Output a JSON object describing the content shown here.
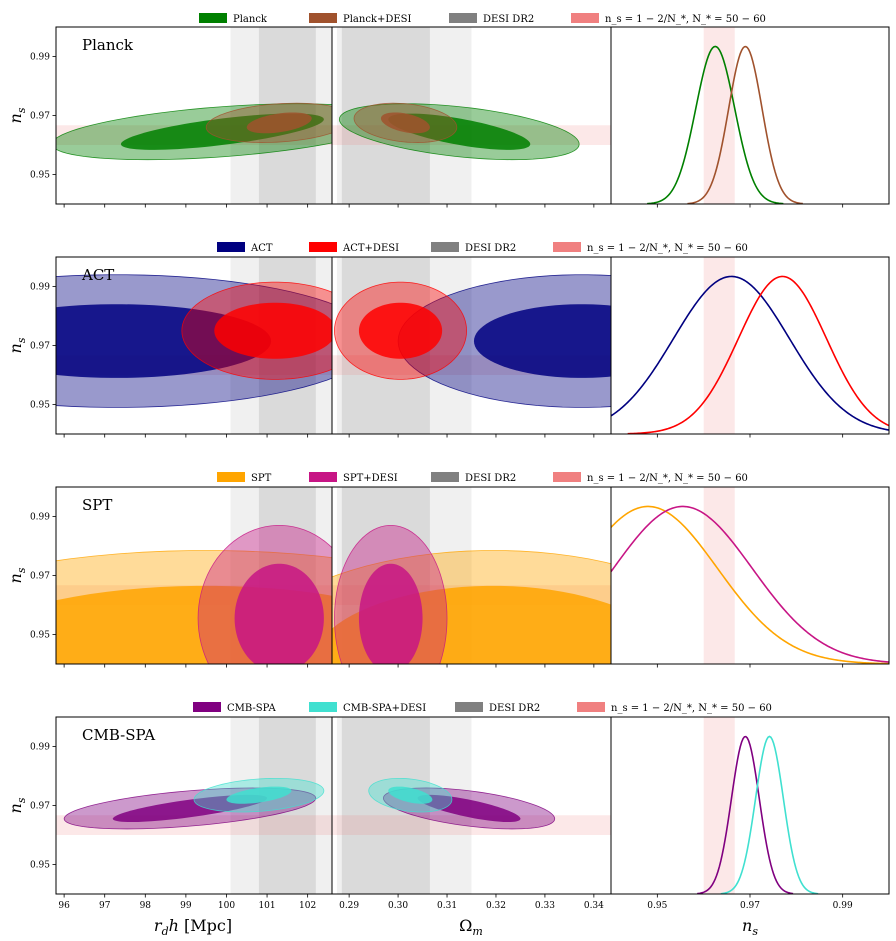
{
  "chart_data": [
    {
      "type": "contour",
      "title": "Planck",
      "legend": [
        {
          "label": "Planck",
          "color": "#008000"
        },
        {
          "label": "Planck+DESI",
          "color": "#a0522d"
        },
        {
          "label": "DESI DR2",
          "color": "#808080"
        },
        {
          "label": "n_s = 1 − 2/N_*,  N_* = 50 − 60",
          "color": "#f08080"
        }
      ],
      "ylabel": "n_s",
      "ylim": [
        0.94,
        1.0
      ],
      "yticks": [
        "0.95",
        "0.97",
        "0.99"
      ],
      "ellipses_rdh": [
        {
          "series": "Planck",
          "color": "#008000",
          "cx": 99.9,
          "cy": 0.9645,
          "rx_outer": 4.2,
          "ry_outer": 0.0085,
          "rx_inner": 2.5,
          "ry_inner": 0.0045,
          "tilt": 0.0042
        },
        {
          "series": "Planck+DESI",
          "color": "#a0522d",
          "cx": 101.3,
          "cy": 0.9675,
          "rx_outer": 1.8,
          "ry_outer": 0.0065,
          "rx_inner": 0.8,
          "ry_inner": 0.0032,
          "tilt": 0.0015
        }
      ],
      "ellipses_om": [
        {
          "series": "Planck",
          "color": "#008000",
          "cx": 0.3125,
          "cy": 0.9645,
          "rx_outer": 0.0245,
          "ry_outer": 0.0085,
          "rx_inner": 0.0145,
          "ry_inner": 0.0045,
          "tilt": -0.0042
        },
        {
          "series": "Planck+DESI",
          "color": "#a0522d",
          "cx": 0.3015,
          "cy": 0.9675,
          "rx_outer": 0.0105,
          "ry_outer": 0.0065,
          "rx_inner": 0.005,
          "ry_inner": 0.0032,
          "tilt": -0.0015
        }
      ],
      "pdf_1d": [
        {
          "series": "Planck",
          "color": "#008000",
          "mean": 0.9625,
          "sigma": 0.0042
        },
        {
          "series": "Planck+DESI",
          "color": "#a0522d",
          "mean": 0.969,
          "sigma": 0.0036
        }
      ]
    },
    {
      "type": "contour",
      "title": "ACT",
      "legend": [
        {
          "label": "ACT",
          "color": "#000080"
        },
        {
          "label": "ACT+DESI",
          "color": "#ff0000"
        },
        {
          "label": "DESI DR2",
          "color": "#808080"
        },
        {
          "label": "n_s = 1 − 2/N_*,  N_* = 50 − 60",
          "color": "#f08080"
        }
      ],
      "ylabel": "n_s",
      "ylim": [
        0.94,
        1.0
      ],
      "yticks": [
        "0.95",
        "0.97",
        "0.99"
      ],
      "ellipses_rdh": [
        {
          "series": "ACT",
          "color": "#000080",
          "cx": 97.3,
          "cy": 0.9715,
          "rx_outer": 6.4,
          "ry_outer": 0.0225,
          "rx_inner": 3.8,
          "ry_inner": 0.0125,
          "tilt": 0.0
        },
        {
          "series": "ACT+DESI",
          "color": "#ff0000",
          "cx": 101.2,
          "cy": 0.975,
          "rx_outer": 2.3,
          "ry_outer": 0.0165,
          "rx_inner": 1.5,
          "ry_inner": 0.0095,
          "tilt": 0.0
        }
      ],
      "ellipses_om": [
        {
          "series": "ACT",
          "color": "#000080",
          "cx": 0.3375,
          "cy": 0.9715,
          "rx_outer": 0.0375,
          "ry_outer": 0.0225,
          "rx_inner": 0.022,
          "ry_inner": 0.0125,
          "tilt": 0.0
        },
        {
          "series": "ACT+DESI",
          "color": "#ff0000",
          "cx": 0.3005,
          "cy": 0.975,
          "rx_outer": 0.0135,
          "ry_outer": 0.0165,
          "rx_inner": 0.0085,
          "ry_inner": 0.0095,
          "tilt": 0.0
        }
      ],
      "pdf_1d": [
        {
          "series": "ACT",
          "color": "#000080",
          "mean": 0.966,
          "sigma": 0.0125
        },
        {
          "series": "ACT+DESI",
          "color": "#ff0000",
          "mean": 0.977,
          "sigma": 0.0095
        }
      ]
    },
    {
      "type": "contour",
      "title": "SPT",
      "legend": [
        {
          "label": "SPT",
          "color": "#ffa500"
        },
        {
          "label": "SPT+DESI",
          "color": "#c71585"
        },
        {
          "label": "DESI DR2",
          "color": "#808080"
        },
        {
          "label": "n_s = 1 − 2/N_*,  N_* = 50 − 60",
          "color": "#f08080"
        }
      ],
      "ylabel": "n_s",
      "ylim": [
        0.94,
        1.0
      ],
      "yticks": [
        "0.95",
        "0.97",
        "0.99"
      ],
      "ellipses_rdh": [
        {
          "series": "SPT",
          "color": "#ffa500",
          "cx": 99.5,
          "cy": 0.939,
          "rx_outer": 9.0,
          "ry_outer": 0.0395,
          "rx_inner": 6.5,
          "ry_inner": 0.0275,
          "tilt": 0.0
        },
        {
          "series": "SPT+DESI",
          "color": "#c71585",
          "cx": 101.3,
          "cy": 0.9555,
          "rx_outer": 2.0,
          "ry_outer": 0.0315,
          "rx_inner": 1.1,
          "ry_inner": 0.0185,
          "tilt": 0.0
        }
      ],
      "ellipses_om": [
        {
          "series": "SPT",
          "color": "#ffa500",
          "cx": 0.3195,
          "cy": 0.939,
          "rx_outer": 0.052,
          "ry_outer": 0.0395,
          "rx_inner": 0.0375,
          "ry_inner": 0.0275,
          "tilt": 0.0
        },
        {
          "series": "SPT+DESI",
          "color": "#c71585",
          "cx": 0.2985,
          "cy": 0.9555,
          "rx_outer": 0.0115,
          "ry_outer": 0.0315,
          "rx_inner": 0.0065,
          "ry_inner": 0.0185,
          "tilt": 0.0
        }
      ],
      "pdf_1d": [
        {
          "series": "SPT",
          "color": "#ffa500",
          "mean": 0.948,
          "sigma": 0.015
        },
        {
          "series": "SPT+DESI",
          "color": "#c71585",
          "mean": 0.9555,
          "sigma": 0.015
        }
      ]
    },
    {
      "type": "contour",
      "title": "CMB-SPA",
      "legend": [
        {
          "label": "CMB-SPA",
          "color": "#800080"
        },
        {
          "label": "CMB-SPA+DESI",
          "color": "#40e0d0"
        },
        {
          "label": "DESI DR2",
          "color": "#808080"
        },
        {
          "label": "n_s = 1 − 2/N_*,  N_* = 50 − 60",
          "color": "#f08080"
        }
      ],
      "ylabel": "n_s",
      "ylim": [
        0.94,
        1.0
      ],
      "yticks": [
        "0.95",
        "0.97",
        "0.99"
      ],
      "ellipses_rdh": [
        {
          "series": "CMB-SPA",
          "color": "#800080",
          "cx": 99.1,
          "cy": 0.969,
          "rx_outer": 3.1,
          "ry_outer": 0.006,
          "rx_inner": 1.9,
          "ry_inner": 0.003,
          "tilt": 0.0035
        },
        {
          "series": "CMB-SPA+DESI",
          "color": "#40e0d0",
          "cx": 100.8,
          "cy": 0.9735,
          "rx_outer": 1.6,
          "ry_outer": 0.0055,
          "rx_inner": 0.8,
          "ry_inner": 0.0025,
          "tilt": 0.0015
        }
      ],
      "ellipses_om": [
        {
          "series": "CMB-SPA",
          "color": "#800080",
          "cx": 0.3145,
          "cy": 0.969,
          "rx_outer": 0.0175,
          "ry_outer": 0.006,
          "rx_inner": 0.0105,
          "ry_inner": 0.003,
          "tilt": -0.0035
        },
        {
          "series": "CMB-SPA+DESI",
          "color": "#40e0d0",
          "cx": 0.3025,
          "cy": 0.9735,
          "rx_outer": 0.0085,
          "ry_outer": 0.0055,
          "rx_inner": 0.0045,
          "ry_inner": 0.0025,
          "tilt": -0.0015
        }
      ],
      "pdf_1d": [
        {
          "series": "CMB-SPA",
          "color": "#800080",
          "mean": 0.969,
          "sigma": 0.003
        },
        {
          "series": "CMB-SPA+DESI",
          "color": "#40e0d0",
          "mean": 0.9742,
          "sigma": 0.003
        }
      ]
    }
  ],
  "axes": {
    "rdh": {
      "label": "r_d h [Mpc]",
      "xlim": [
        95.8,
        102.6
      ],
      "ticks": [
        "96",
        "97",
        "98",
        "99",
        "100",
        "101",
        "102"
      ]
    },
    "om": {
      "label": "Ω_m",
      "xlim": [
        0.2865,
        0.3435
      ],
      "ticks": [
        "0.29",
        "0.30",
        "0.31",
        "0.32",
        "0.33",
        "0.34"
      ]
    },
    "ns": {
      "label": "n_s",
      "xlim": [
        0.94,
        1.0
      ],
      "ticks": [
        "0.95",
        "0.97",
        "0.99"
      ]
    }
  },
  "bands": {
    "desi_rdh_1sigma": [
      100.8,
      102.2
    ],
    "desi_rdh_2sigma": [
      100.1,
      102.9
    ],
    "desi_om_1sigma": [
      0.2885,
      0.3065
    ],
    "desi_om_2sigma": [
      0.2875,
      0.315
    ],
    "ns_inflation": [
      0.96,
      0.9667
    ]
  }
}
